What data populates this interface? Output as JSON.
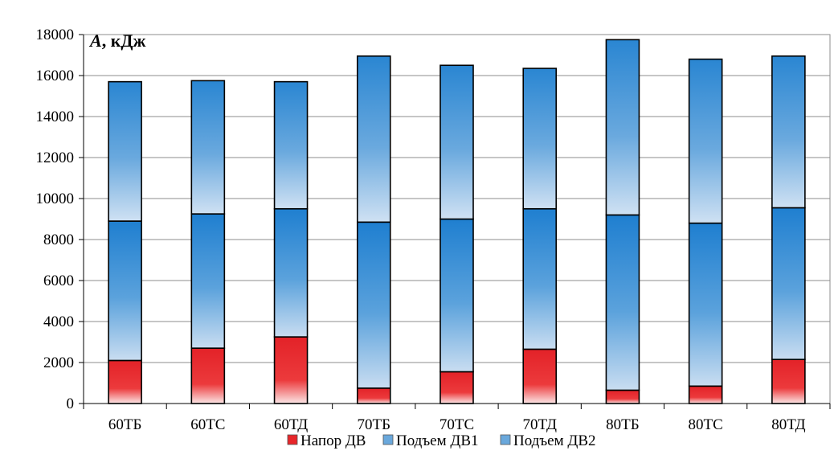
{
  "chart_data": {
    "type": "bar",
    "stacked": true,
    "title": "",
    "xlabel": "",
    "ylabel": "A, кДж",
    "ylabel_italic_part": "A",
    "ylabel_rest": ", кДж",
    "ylim": [
      0,
      18000
    ],
    "yticks": [
      0,
      2000,
      4000,
      6000,
      8000,
      10000,
      12000,
      14000,
      16000,
      18000
    ],
    "ytick_labels": [
      "0",
      "2000",
      "4000",
      "6000",
      "8000",
      "10000",
      "12000",
      "14000",
      "16000",
      "18000"
    ],
    "grid": true,
    "legend_position": "bottom",
    "categories": [
      "60ТБ",
      "60ТС",
      "60ТД",
      "70ТБ",
      "70ТС",
      "70ТД",
      "80ТБ",
      "80ТС",
      "80ТД"
    ],
    "series": [
      {
        "name": "Напор ДВ",
        "color": "#e8262a",
        "values": [
          2100,
          2700,
          3250,
          750,
          1550,
          2650,
          650,
          850,
          2150
        ]
      },
      {
        "name": "Подъем ДВ1",
        "color": "#3a8fd4",
        "values": [
          6800,
          6550,
          6250,
          8100,
          7450,
          6850,
          8550,
          7950,
          7400
        ]
      },
      {
        "name": "Подъем ДВ2",
        "color": "#5b9ed8",
        "values": [
          6800,
          6500,
          6200,
          8100,
          7500,
          6850,
          8550,
          8000,
          7400
        ]
      }
    ]
  }
}
